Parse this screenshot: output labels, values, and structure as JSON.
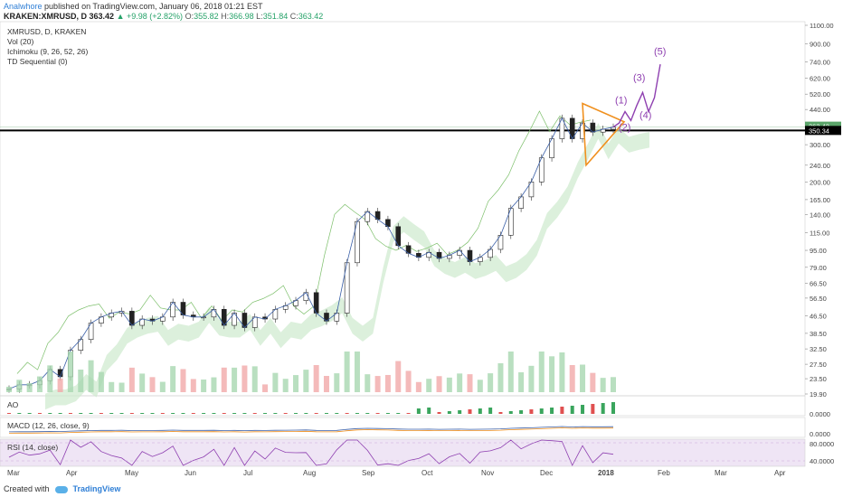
{
  "header": {
    "author": "Analwhore",
    "published": "published on TradingView.com, January 06, 2018 01:21 EST",
    "symbol": "KRAKEN:XMRUSD, D",
    "last": "363.42",
    "change": "+9.98 (+2.82%)",
    "o_label": "O:",
    "o": "355.82",
    "h_label": "H:",
    "h": "366.98",
    "l_label": "L:",
    "l": "351.84",
    "c_label": "C:",
    "c": "363.42"
  },
  "legend": [
    "XMRUSD, D, KRAKEN",
    "Vol (20)",
    "Ichimoku (9, 26, 52, 26)",
    "TD Sequential (0)"
  ],
  "panes": {
    "ao": "AO",
    "macd": "MACD (12, 26, close, 9)",
    "rsi": "RSI (14, close)"
  },
  "footer": {
    "created": "Created with",
    "brand": "TradingView"
  },
  "colors": {
    "up": "#26a269",
    "down": "#e05050",
    "wave": "#8e3fb0",
    "triangle": "#f0901e",
    "cloud_up": "#cde9cd",
    "cloud_down": "#f3c9c9",
    "rsi": "#8e3fb0"
  },
  "chart_data": {
    "type": "line",
    "scale": "log",
    "ylim": [
      19.9,
      1100
    ],
    "y_ticks": [
      "1100.00",
      "900.00",
      "740.00",
      "620.00",
      "520.00",
      "440.00",
      "363.42",
      "350.34",
      "300.00",
      "240.00",
      "200.00",
      "165.00",
      "140.00",
      "115.00",
      "95.00",
      "79.00",
      "66.50",
      "56.50",
      "46.50",
      "38.50",
      "32.50",
      "27.50",
      "23.50",
      "19.90"
    ],
    "x_ticks": [
      "Mar",
      "Apr",
      "May",
      "Jun",
      "Jul",
      "Aug",
      "Sep",
      "Oct",
      "Nov",
      "Dec",
      "2018",
      "Feb",
      "Mar",
      "Apr"
    ],
    "price_badge": "363.42",
    "level_badge": "350.34",
    "wave_labels": [
      "(1)",
      "(2)",
      "(3)",
      "(4)",
      "(5)"
    ],
    "series": [
      {
        "name": "XMRUSD",
        "values": [
          21,
          22,
          22,
          23,
          26,
          24,
          32,
          36,
          43,
          46,
          48,
          49,
          42,
          45,
          44,
          46,
          54,
          47,
          46,
          46,
          50,
          42,
          48,
          41,
          46,
          45,
          50,
          52,
          55,
          60,
          48,
          44,
          48,
          83,
          130,
          145,
          133,
          123,
          100,
          92,
          88,
          93,
          87,
          90,
          95,
          84,
          88,
          96,
          112,
          150,
          170,
          200,
          260,
          320,
          400,
          320,
          380,
          344,
          355,
          363
        ]
      }
    ],
    "projection": {
      "name": "Elliott wave projection",
      "values": [
        363,
        380,
        430,
        390,
        460,
        530,
        430,
        500,
        720
      ]
    },
    "level": 350.34,
    "rsi": {
      "ylim": [
        30,
        90
      ],
      "ticks": [
        "80.0000",
        "40.0000"
      ]
    },
    "macd": {
      "ticks": [
        "0.0000"
      ]
    },
    "ao": {
      "ticks": [
        "0.0000"
      ]
    }
  }
}
